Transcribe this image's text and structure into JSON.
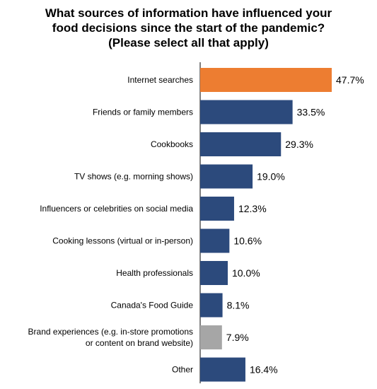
{
  "title_lines": [
    "What sources of information  have influenced your",
    "food decisions  since the start of the pandemic?",
    "(Please select all that apply)"
  ],
  "colors": {
    "default": "#2C4A7C",
    "highlight": "#ED7D31",
    "muted": "#A6A6A6"
  },
  "chart_data": {
    "type": "bar",
    "orientation": "horizontal",
    "title": "What sources of information  have influenced your food decisions  since the start of the pandemic? (Please select all that apply)",
    "categories": [
      [
        "Internet searches"
      ],
      [
        "Friends or family members"
      ],
      [
        "Cookbooks"
      ],
      [
        "TV shows (e.g. morning shows)"
      ],
      [
        "Influencers or celebrities on social media"
      ],
      [
        "Cooking lessons (virtual or in-person)"
      ],
      [
        "Health professionals"
      ],
      [
        "Canada's Food Guide"
      ],
      [
        "Brand experiences (e.g. in-store promotions",
        "or content on brand website)"
      ],
      [
        "Other"
      ]
    ],
    "values": [
      47.7,
      33.5,
      29.3,
      19.0,
      12.3,
      10.6,
      10.0,
      8.1,
      7.9,
      16.4
    ],
    "value_labels": [
      "47.7%",
      "33.5%",
      "29.3%",
      "19.0%",
      "12.3%",
      "10.6%",
      "10.0%",
      "8.1%",
      "7.9%",
      "16.4%"
    ],
    "bar_colors": [
      "highlight",
      "default",
      "default",
      "default",
      "default",
      "default",
      "default",
      "default",
      "muted",
      "default"
    ],
    "xlim": [
      0,
      47.7
    ],
    "grid": false,
    "legend": "none"
  }
}
